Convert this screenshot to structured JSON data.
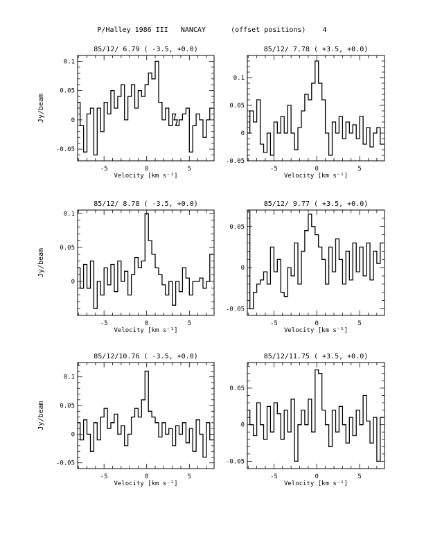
{
  "page_title": "P/Halley 1986 III   NANCAY      (offset positions)    4",
  "chart_data": [
    {
      "type": "line",
      "title": "85/12/ 6.79  ( -3.5, +0.0)",
      "xlabel": "Velocity [km s⁻¹]",
      "ylabel": "Jy/beam",
      "xlim": [
        -8.1,
        7.9
      ],
      "ylim": [
        -0.07,
        0.11
      ],
      "xticks": [
        -5,
        0,
        5
      ],
      "ytick_labels": [
        "0.1",
        "0.05",
        "0",
        "-0.05"
      ],
      "ytick_values": [
        0.1,
        0.05,
        0,
        -0.05
      ],
      "steps": true,
      "x": [
        -8.0,
        -7.6,
        -7.2,
        -6.8,
        -6.4,
        -6.0,
        -5.6,
        -5.2,
        -4.8,
        -4.4,
        -4.0,
        -3.6,
        -3.2,
        -2.8,
        -2.4,
        -2.0,
        -1.6,
        -1.2,
        -0.8,
        -0.4,
        0.0,
        0.4,
        0.8,
        1.2,
        1.6,
        2.0,
        2.4,
        2.8,
        3.2,
        3.4,
        3.6,
        4.0,
        4.4,
        4.8,
        5.2,
        5.6,
        6.0,
        6.4,
        6.8,
        7.2,
        7.6
      ],
      "y": [
        0.03,
        -0.01,
        -0.055,
        0.01,
        0.02,
        -0.06,
        0.02,
        -0.02,
        0.03,
        0.01,
        0.05,
        0.02,
        0.04,
        0.06,
        0.0,
        0.04,
        0.06,
        0.02,
        0.05,
        0.04,
        0.06,
        0.08,
        0.07,
        0.1,
        0.03,
        0.0,
        0.02,
        -0.01,
        0.01,
        0.0,
        -0.01,
        0.0,
        0.01,
        0.02,
        -0.055,
        -0.01,
        0.01,
        0.0,
        -0.03,
        0.0,
        0.02
      ]
    },
    {
      "type": "line",
      "title": "85/12/ 7.78  ( +3.5, +0.0)",
      "xlabel": "Velocity [km s⁻¹]",
      "ylabel": "",
      "xlim": [
        -8.1,
        7.9
      ],
      "ylim": [
        -0.05,
        0.14
      ],
      "xticks": [
        -5,
        0,
        5
      ],
      "ytick_labels": [
        "0.1",
        "0.05",
        "0",
        "-0.05"
      ],
      "ytick_values": [
        0.1,
        0.05,
        0,
        -0.05
      ],
      "steps": true,
      "x": [
        -8.0,
        -7.6,
        -7.2,
        -6.8,
        -6.4,
        -6.0,
        -5.6,
        -5.2,
        -4.8,
        -4.4,
        -4.0,
        -3.6,
        -3.2,
        -2.8,
        -2.4,
        -2.0,
        -1.6,
        -1.2,
        -0.8,
        -0.4,
        0.0,
        0.4,
        0.8,
        1.2,
        1.6,
        2.0,
        2.4,
        2.8,
        3.2,
        3.6,
        4.0,
        4.4,
        4.8,
        5.2,
        5.6,
        6.0,
        6.4,
        6.8,
        7.2,
        7.6
      ],
      "y": [
        0.0,
        0.04,
        0.02,
        0.06,
        -0.02,
        -0.035,
        0.0,
        -0.04,
        0.02,
        0.0,
        0.03,
        0.0,
        0.05,
        0.0,
        -0.03,
        0.01,
        0.04,
        0.07,
        0.06,
        0.09,
        0.13,
        0.09,
        0.06,
        0.0,
        -0.04,
        0.02,
        0.0,
        0.03,
        -0.01,
        0.02,
        0.0,
        0.015,
        -0.01,
        0.03,
        -0.02,
        0.01,
        -0.025,
        0.0,
        0.01,
        -0.02
      ]
    },
    {
      "type": "line",
      "title": "85/12/ 8.78  ( -3.5, +0.0)",
      "xlabel": "Velocity [km s⁻¹]",
      "ylabel": "Jy/beam",
      "xlim": [
        -8.1,
        7.9
      ],
      "ylim": [
        -0.05,
        0.105
      ],
      "xticks": [
        -5,
        0,
        5
      ],
      "ytick_labels": [
        "0.1",
        "0.05",
        "0"
      ],
      "ytick_values": [
        0.1,
        0.05,
        0
      ],
      "steps": true,
      "x": [
        -8.0,
        -7.6,
        -7.2,
        -6.8,
        -6.4,
        -6.0,
        -5.6,
        -5.2,
        -4.8,
        -4.4,
        -4.0,
        -3.6,
        -3.2,
        -2.8,
        -2.4,
        -2.0,
        -1.6,
        -1.2,
        -0.8,
        -0.4,
        0.0,
        0.4,
        0.8,
        1.2,
        1.6,
        2.0,
        2.4,
        2.8,
        3.2,
        3.6,
        4.0,
        4.4,
        4.8,
        5.2,
        5.6,
        6.0,
        6.4,
        6.8,
        7.2,
        7.6
      ],
      "y": [
        0.02,
        -0.01,
        0.025,
        -0.01,
        0.03,
        -0.04,
        0.0,
        -0.02,
        0.02,
        -0.005,
        0.025,
        -0.015,
        0.03,
        0.0,
        0.015,
        -0.02,
        0.01,
        0.035,
        0.02,
        0.03,
        0.1,
        0.06,
        0.04,
        0.02,
        0.01,
        -0.005,
        -0.02,
        0.0,
        -0.035,
        0.0,
        -0.015,
        0.02,
        0.005,
        -0.02,
        0.0,
        0.0,
        0.005,
        -0.01,
        0.0,
        0.04
      ]
    },
    {
      "type": "line",
      "title": "85/12/ 9.77  ( +3.5, +0.0)",
      "xlabel": "Velocity [km s⁻¹]",
      "ylabel": "",
      "xlim": [
        -8.1,
        7.9
      ],
      "ylim": [
        -0.058,
        0.07
      ],
      "xticks": [
        -5,
        0,
        5
      ],
      "ytick_labels": [
        "0.05",
        "0",
        "-0.05"
      ],
      "ytick_values": [
        0.05,
        0,
        -0.05
      ],
      "steps": true,
      "x": [
        -8.0,
        -7.6,
        -7.2,
        -6.8,
        -6.4,
        -6.0,
        -5.6,
        -5.2,
        -4.8,
        -4.4,
        -4.0,
        -3.6,
        -3.2,
        -2.8,
        -2.4,
        -2.0,
        -1.6,
        -1.2,
        -0.8,
        -0.4,
        0.0,
        0.4,
        0.8,
        1.2,
        1.6,
        2.0,
        2.4,
        2.8,
        3.2,
        3.6,
        4.0,
        4.4,
        4.8,
        5.2,
        5.6,
        6.0,
        6.4,
        6.8,
        7.2,
        7.6
      ],
      "y": [
        0.07,
        -0.05,
        -0.03,
        -0.02,
        -0.015,
        -0.005,
        -0.02,
        0.025,
        -0.005,
        0.01,
        -0.03,
        -0.035,
        0.0,
        -0.01,
        0.03,
        -0.02,
        0.02,
        0.045,
        0.065,
        0.05,
        0.04,
        0.025,
        0.01,
        -0.02,
        0.025,
        -0.005,
        0.035,
        0.01,
        -0.02,
        0.02,
        -0.015,
        0.03,
        -0.005,
        0.025,
        -0.01,
        0.03,
        -0.015,
        0.02,
        0.005,
        0.03
      ]
    },
    {
      "type": "line",
      "title": "85/12/10.76  ( -3.5, +0.0)",
      "xlabel": "Velocity [km s⁻¹]",
      "ylabel": "Jy/beam",
      "xlim": [
        -8.1,
        7.9
      ],
      "ylim": [
        -0.06,
        0.125
      ],
      "xticks": [
        -5,
        0,
        5
      ],
      "ytick_labels": [
        "0.1",
        "0.05",
        "0",
        "-0.05"
      ],
      "ytick_values": [
        0.1,
        0.05,
        0,
        -0.05
      ],
      "steps": true,
      "x": [
        -8.0,
        -7.6,
        -7.2,
        -6.8,
        -6.4,
        -6.0,
        -5.6,
        -5.2,
        -4.8,
        -4.4,
        -4.0,
        -3.6,
        -3.2,
        -2.8,
        -2.4,
        -2.0,
        -1.6,
        -1.2,
        -0.8,
        -0.4,
        0.0,
        0.4,
        0.8,
        1.2,
        1.6,
        2.0,
        2.4,
        2.8,
        3.2,
        3.6,
        4.0,
        4.4,
        4.8,
        5.2,
        5.6,
        6.0,
        6.4,
        6.8,
        7.2,
        7.6
      ],
      "y": [
        0.02,
        -0.01,
        0.025,
        0.0,
        -0.03,
        0.02,
        -0.01,
        0.03,
        0.045,
        0.01,
        0.02,
        0.035,
        0.0,
        0.015,
        -0.02,
        0.0,
        0.03,
        0.045,
        0.03,
        0.06,
        0.11,
        0.04,
        0.03,
        0.02,
        -0.005,
        0.02,
        0.0,
        0.01,
        -0.02,
        0.015,
        0.0,
        0.02,
        -0.015,
        0.01,
        -0.03,
        0.025,
        0.0,
        -0.04,
        0.02,
        -0.01
      ]
    },
    {
      "type": "line",
      "title": "85/12/11.75  ( +3.5, +0.0)",
      "xlabel": "Velocity [km s⁻¹]",
      "ylabel": "",
      "xlim": [
        -8.1,
        7.9
      ],
      "ylim": [
        -0.06,
        0.085
      ],
      "xticks": [
        -5,
        0,
        5
      ],
      "ytick_labels": [
        "0.05",
        "0",
        "-0.05"
      ],
      "ytick_values": [
        0.05,
        0,
        -0.05
      ],
      "steps": true,
      "x": [
        -8.0,
        -7.6,
        -7.2,
        -6.8,
        -6.4,
        -6.0,
        -5.6,
        -5.2,
        -4.8,
        -4.4,
        -4.0,
        -3.6,
        -3.2,
        -2.8,
        -2.4,
        -2.0,
        -1.6,
        -1.2,
        -0.8,
        -0.4,
        0.0,
        0.4,
        0.8,
        1.2,
        1.6,
        2.0,
        2.4,
        2.8,
        3.2,
        3.6,
        4.0,
        4.4,
        4.8,
        5.2,
        5.6,
        6.0,
        6.4,
        6.8,
        7.2,
        7.6
      ],
      "y": [
        0.02,
        0.0,
        -0.015,
        0.03,
        0.0,
        -0.02,
        0.025,
        -0.01,
        0.03,
        0.015,
        -0.02,
        0.02,
        -0.01,
        0.035,
        -0.05,
        0.0,
        0.02,
        0.0,
        0.035,
        -0.01,
        0.075,
        0.07,
        0.02,
        0.0,
        -0.03,
        0.02,
        -0.01,
        0.025,
        0.0,
        -0.025,
        0.01,
        -0.015,
        0.02,
        0.0,
        0.04,
        0.005,
        -0.025,
        0.01,
        -0.05,
        0.01
      ]
    }
  ]
}
